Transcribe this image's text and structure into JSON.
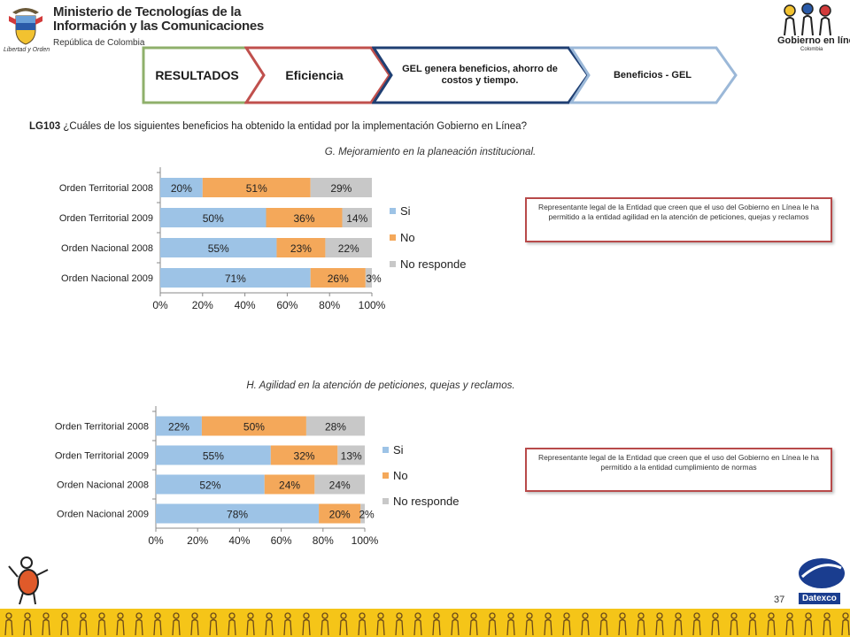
{
  "header": {
    "ministry_line1": "Ministerio de Tecnologías de la",
    "ministry_line2": "Información y las Comunicaciones",
    "ministry_sub": "República de Colombia",
    "shield_caption": "Libertad y Orden",
    "gobierno_logo": "Gobierno en línea",
    "gobierno_country": "Colombia"
  },
  "tabs": [
    {
      "label": "RESULTADOS",
      "color": "#8fb06b"
    },
    {
      "label": "Eficiencia",
      "color": "#c0504d"
    },
    {
      "label": "GEL genera beneficios, ahorro de costos y tiempo.",
      "color": "#1f3f73"
    },
    {
      "label": "Beneficios - GEL",
      "color": "#9bb8d8"
    }
  ],
  "question": {
    "code": "LG103",
    "text": "¿Cuáles de los siguientes beneficios ha obtenido la entidad por la implementación Gobierno en Línea?"
  },
  "chart_data": [
    {
      "type": "bar",
      "orientation": "horizontal",
      "stacked": true,
      "title": "G. Mejoramiento en la planeación institucional.",
      "categories": [
        "Orden Territorial 2008",
        "Orden Territorial 2009",
        "Orden Nacional 2008",
        "Orden Nacional 2009"
      ],
      "series": [
        {
          "name": "Si",
          "values": [
            20,
            50,
            55,
            71
          ],
          "labels": [
            "20%",
            "50%",
            "55%",
            "71%"
          ]
        },
        {
          "name": "No",
          "values": [
            51,
            36,
            23,
            26
          ],
          "labels": [
            "51%",
            "36%",
            "23%",
            "26%"
          ]
        },
        {
          "name": "No responde",
          "values": [
            29,
            14,
            22,
            3
          ],
          "labels": [
            "29%",
            "14%",
            "22%",
            "3%"
          ]
        }
      ],
      "xticks": [
        "0%",
        "20%",
        "40%",
        "60%",
        "80%",
        "100%"
      ],
      "xlim": [
        0,
        100
      ],
      "legend": "right",
      "colors": [
        "#9dc3e6",
        "#f4a85a",
        "#c8c8c8"
      ]
    },
    {
      "type": "bar",
      "orientation": "horizontal",
      "stacked": true,
      "title": "H. Agilidad en la atención de peticiones, quejas y reclamos.",
      "categories": [
        "Orden Territorial 2008",
        "Orden Territorial 2009",
        "Orden Nacional 2008",
        "Orden Nacional 2009"
      ],
      "series": [
        {
          "name": "Si",
          "values": [
            22,
            55,
            52,
            78
          ],
          "labels": [
            "22%",
            "55%",
            "52%",
            "78%"
          ]
        },
        {
          "name": "No",
          "values": [
            50,
            32,
            24,
            20
          ],
          "labels": [
            "50%",
            "32%",
            "24%",
            "20%"
          ]
        },
        {
          "name": "No responde",
          "values": [
            28,
            13,
            24,
            2
          ],
          "labels": [
            "28%",
            "13%",
            "24%",
            "2%"
          ]
        }
      ],
      "xticks": [
        "0%",
        "20%",
        "40%",
        "60%",
        "80%",
        "100%"
      ],
      "xlim": [
        0,
        100
      ],
      "legend": "right",
      "colors": [
        "#9dc3e6",
        "#f4a85a",
        "#c8c8c8"
      ]
    }
  ],
  "notes": [
    "Representante legal de la Entidad que creen que el uso del Gobierno en Línea le ha permitido a la entidad agilidad en la atención de peticiones, quejas y reclamos",
    "Representante legal de la Entidad que creen que el uso del Gobierno en Línea le ha permitido a la entidad cumplimiento de normas"
  ],
  "footer": {
    "page_number": "37",
    "datexco_logo": "Datexco"
  }
}
